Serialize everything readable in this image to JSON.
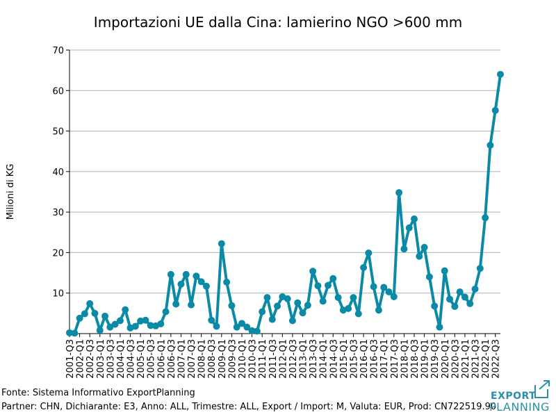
{
  "chart_data": {
    "type": "line",
    "title": "Importazioni UE dalla Cina: lamierino NGO >600 mm",
    "xlabel": "",
    "ylabel": "Milioni di KG",
    "ylim": [
      0,
      70
    ],
    "yticks": [
      10,
      20,
      30,
      40,
      50,
      60,
      70
    ],
    "grid": true,
    "color": "#0a8aa6",
    "tick_labels": [
      "2001-Q3",
      "2002-Q1",
      "2002-Q3",
      "2003-Q1",
      "2003-Q3",
      "2004-Q1",
      "2004-Q3",
      "2005-Q1",
      "2005-Q3",
      "2006-Q1",
      "2006-Q3",
      "2007-Q1",
      "2007-Q3",
      "2008-Q1",
      "2008-Q3",
      "2009-Q1",
      "2009-Q3",
      "2010-Q1",
      "2010-Q3",
      "2011-Q1",
      "2011-Q3",
      "2012-Q1",
      "2012-Q3",
      "2013-Q1",
      "2013-Q3",
      "2014-Q1",
      "2014-Q3",
      "2015-Q1",
      "2015-Q3",
      "2016-Q1",
      "2016-Q3",
      "2017-Q1",
      "2017-Q3",
      "2018-Q1",
      "2018-Q3",
      "2019-Q1",
      "2019-Q3",
      "2020-Q1",
      "2020-Q3",
      "2021-Q1",
      "2021-Q3",
      "2022-Q1",
      "2022-Q3"
    ],
    "series": [
      {
        "name": "Importazioni",
        "values": [
          0.2,
          0.1,
          3.8,
          4.9,
          7.4,
          5.0,
          0.8,
          4.3,
          1.6,
          2.3,
          3.2,
          5.9,
          1.4,
          1.8,
          3.1,
          3.3,
          2.0,
          1.9,
          2.4,
          5.4,
          14.6,
          7.3,
          12.2,
          14.6,
          7.1,
          14.2,
          12.8,
          11.7,
          3.3,
          1.8,
          22.2,
          12.7,
          6.9,
          1.6,
          2.5,
          1.6,
          0.7,
          0.6,
          5.4,
          8.9,
          3.5,
          6.8,
          9.1,
          8.6,
          3.2,
          7.6,
          5.1,
          7.0,
          15.4,
          11.8,
          8.0,
          11.9,
          13.6,
          8.9,
          5.8,
          6.2,
          8.9,
          4.9,
          16.3,
          19.9,
          11.6,
          5.8,
          11.4,
          10.3,
          9.1,
          34.8,
          20.9,
          26.1,
          28.3,
          19.1,
          21.3,
          14.0,
          6.8,
          1.6,
          15.5,
          8.5,
          6.7,
          10.3,
          9.0,
          7.4,
          11.0,
          16.1,
          28.6,
          46.5,
          55.1,
          64.0
        ]
      }
    ]
  },
  "footer": {
    "source": "Fonte: Sistema Informativo ExportPlanning",
    "details": "Partner: CHN, Dichiarante: E3, Anno: ALL, Trimestre: ALL, Export / Import: M, Valuta: EUR, Prod: CN722519.90"
  },
  "logo": {
    "line1": "EXPORT",
    "line2": "PLANNING"
  }
}
